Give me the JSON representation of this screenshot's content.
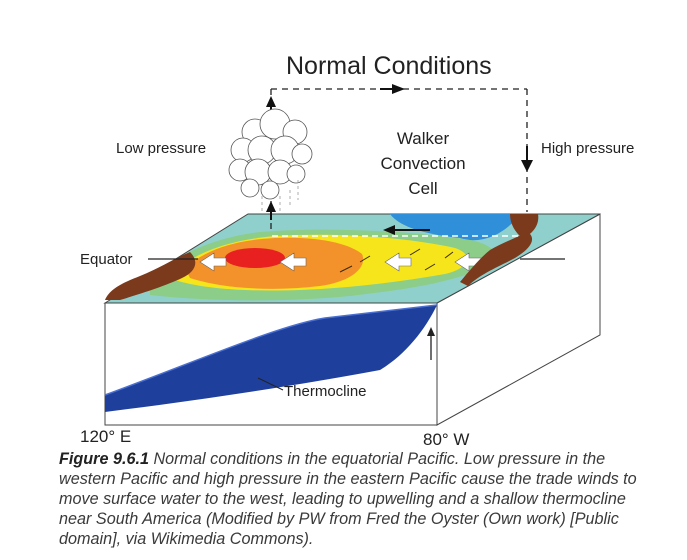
{
  "diagram": {
    "title": "Normal Conditions",
    "labels": {
      "low_pressure": "Low pressure",
      "high_pressure": "High pressure",
      "walker_line1": "Walker",
      "walker_line2": "Convection",
      "walker_line3": "Cell",
      "equator": "Equator",
      "thermocline": "Thermocline",
      "west_longitude": "120° E",
      "east_longitude": "80° W"
    },
    "colors": {
      "deep_water": "#1e3f9c",
      "warm_pool": "#e8201f",
      "warm": "#f3922b",
      "mild": "#f6e51a",
      "cool": "#8ccd8a",
      "cold": "#8fd0cc",
      "coldest": "#2f8fd8",
      "land": "#7b3a1c"
    }
  },
  "caption": {
    "figure_label": "Figure 9.6.1",
    "text": " Normal conditions in the equatorial Pacific. Low pressure in the western Pacific and high pressure in the eastern Pacific cause the trade winds to move surface water to the west, leading to upwelling and a shallow thermocline near South America (Modified by PW from Fred the Oyster (Own work) [Public domain], via Wikimedia Commons)."
  }
}
